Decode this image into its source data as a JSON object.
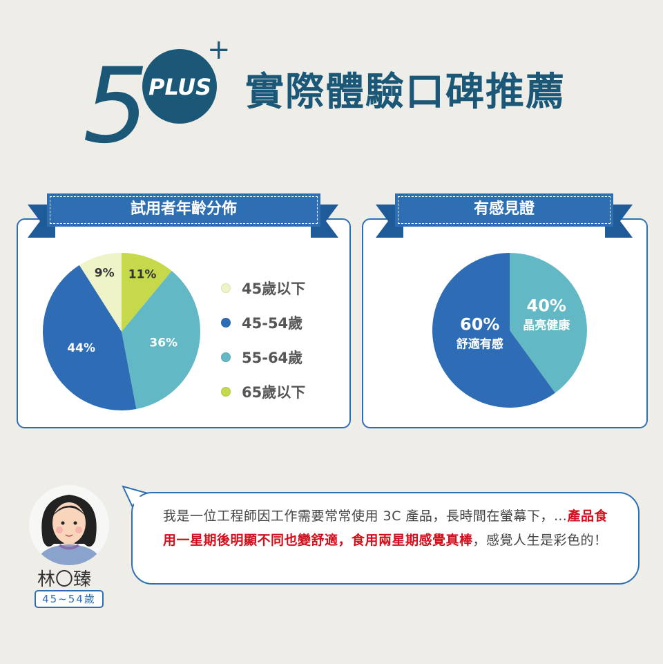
{
  "header": {
    "logo_text": "50+ PLUS",
    "logo_plus": "PLUS",
    "title": "實際體驗口碑推薦"
  },
  "colors": {
    "navy": "#1b5878",
    "blue": "#2e6fb3",
    "teal": "#62b8c4",
    "green": "#c5d94a",
    "pale": "#eef3c8",
    "red": "#d0101c"
  },
  "chart_data": [
    {
      "type": "pie",
      "title": "試用者年齡分佈",
      "legend_position": "right",
      "slices": [
        {
          "label": "65歲以下",
          "value": 11,
          "display": "11%",
          "color": "#c5d94a"
        },
        {
          "label": "55-64歲",
          "value": 36,
          "display": "36%",
          "color": "#62b8c4"
        },
        {
          "label": "45-54歲",
          "value": 44,
          "display": "44%",
          "color": "#2e6db5"
        },
        {
          "label": "45歲以下",
          "value": 9,
          "display": "9%",
          "color": "#eef3c8"
        }
      ],
      "legend": [
        "45歲以下",
        "45-54歲",
        "55-64歲",
        "65歲以下"
      ],
      "legend_colors": [
        "#eef3c8",
        "#2e6db5",
        "#62b8c4",
        "#c5d94a"
      ]
    },
    {
      "type": "pie",
      "title": "有感見證",
      "slices": [
        {
          "label": "晶亮健康",
          "value": 40,
          "display": "40%",
          "color": "#62b8c4"
        },
        {
          "label": "舒適有感",
          "value": 60,
          "display": "60%",
          "color": "#2e6db5"
        }
      ]
    }
  ],
  "testimonial": {
    "name": "林〇臻",
    "age": "45~54歲",
    "text_1": "我是一位工程師因工作需要常常使用 3C 產品，長時間在螢幕下，…",
    "text_red": "產品食用一星期後明顯不同也變舒適，食用兩星期感覺真棒",
    "text_2": "，感覺人生是彩色的！"
  }
}
